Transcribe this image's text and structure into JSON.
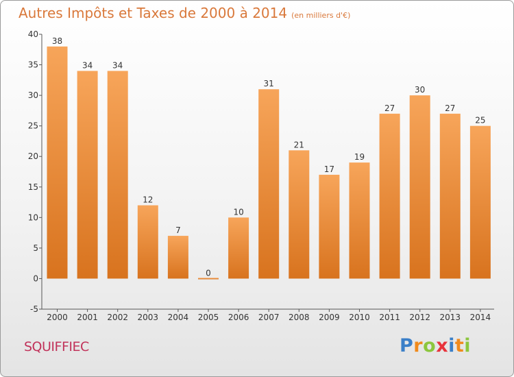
{
  "title": "Autres Impôts et Taxes de 2000 à 2014",
  "unit_note": "(en milliers d'€)",
  "commune": "SQUIFFIEC",
  "logo": {
    "letters": [
      "P",
      "r",
      "o",
      "x",
      "i",
      "t",
      "i"
    ],
    "colors": [
      "#3a7fc8",
      "#f08a1c",
      "#8cc63e",
      "#e8343c",
      "#3a7fc8",
      "#f08a1c",
      "#8cc63e"
    ]
  },
  "chart_data": {
    "type": "bar",
    "categories": [
      "2000",
      "2001",
      "2002",
      "2003",
      "2004",
      "2005",
      "2006",
      "2007",
      "2008",
      "2009",
      "2010",
      "2011",
      "2012",
      "2013",
      "2014"
    ],
    "values": [
      38,
      34,
      34,
      12,
      7,
      0,
      10,
      31,
      21,
      17,
      19,
      27,
      30,
      27,
      25
    ],
    "ylim": [
      -5,
      40
    ],
    "yticks": [
      -5,
      0,
      5,
      10,
      15,
      20,
      25,
      30,
      35,
      40
    ],
    "grid": false,
    "bar_color_top": "#f7a55a",
    "bar_color_bottom": "#d8731e"
  }
}
